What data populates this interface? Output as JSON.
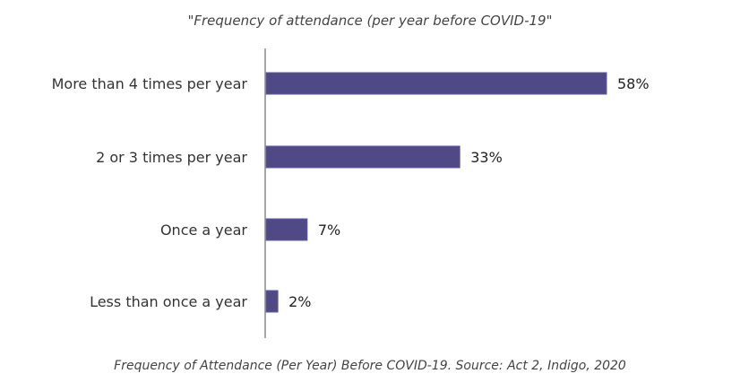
{
  "chart_data": {
    "type": "bar",
    "orientation": "horizontal",
    "title": "\"Frequency of attendance (per year before COVID-19\"",
    "caption": "Frequency of Attendance (Per Year) Before COVID-19. Source: Act 2, Indigo, 2020",
    "categories": [
      "More than 4 times per year",
      "2 or 3 times per year",
      "Once a year",
      "Less than once a year"
    ],
    "values": [
      58,
      33,
      7,
      2
    ],
    "value_labels": [
      "58%",
      "33%",
      "7%",
      "2%"
    ],
    "xlim": [
      0,
      100
    ],
    "grid": false,
    "legend": "none",
    "colors": {
      "bar": "#4f4a86",
      "axis": "#a6a6a6"
    }
  }
}
